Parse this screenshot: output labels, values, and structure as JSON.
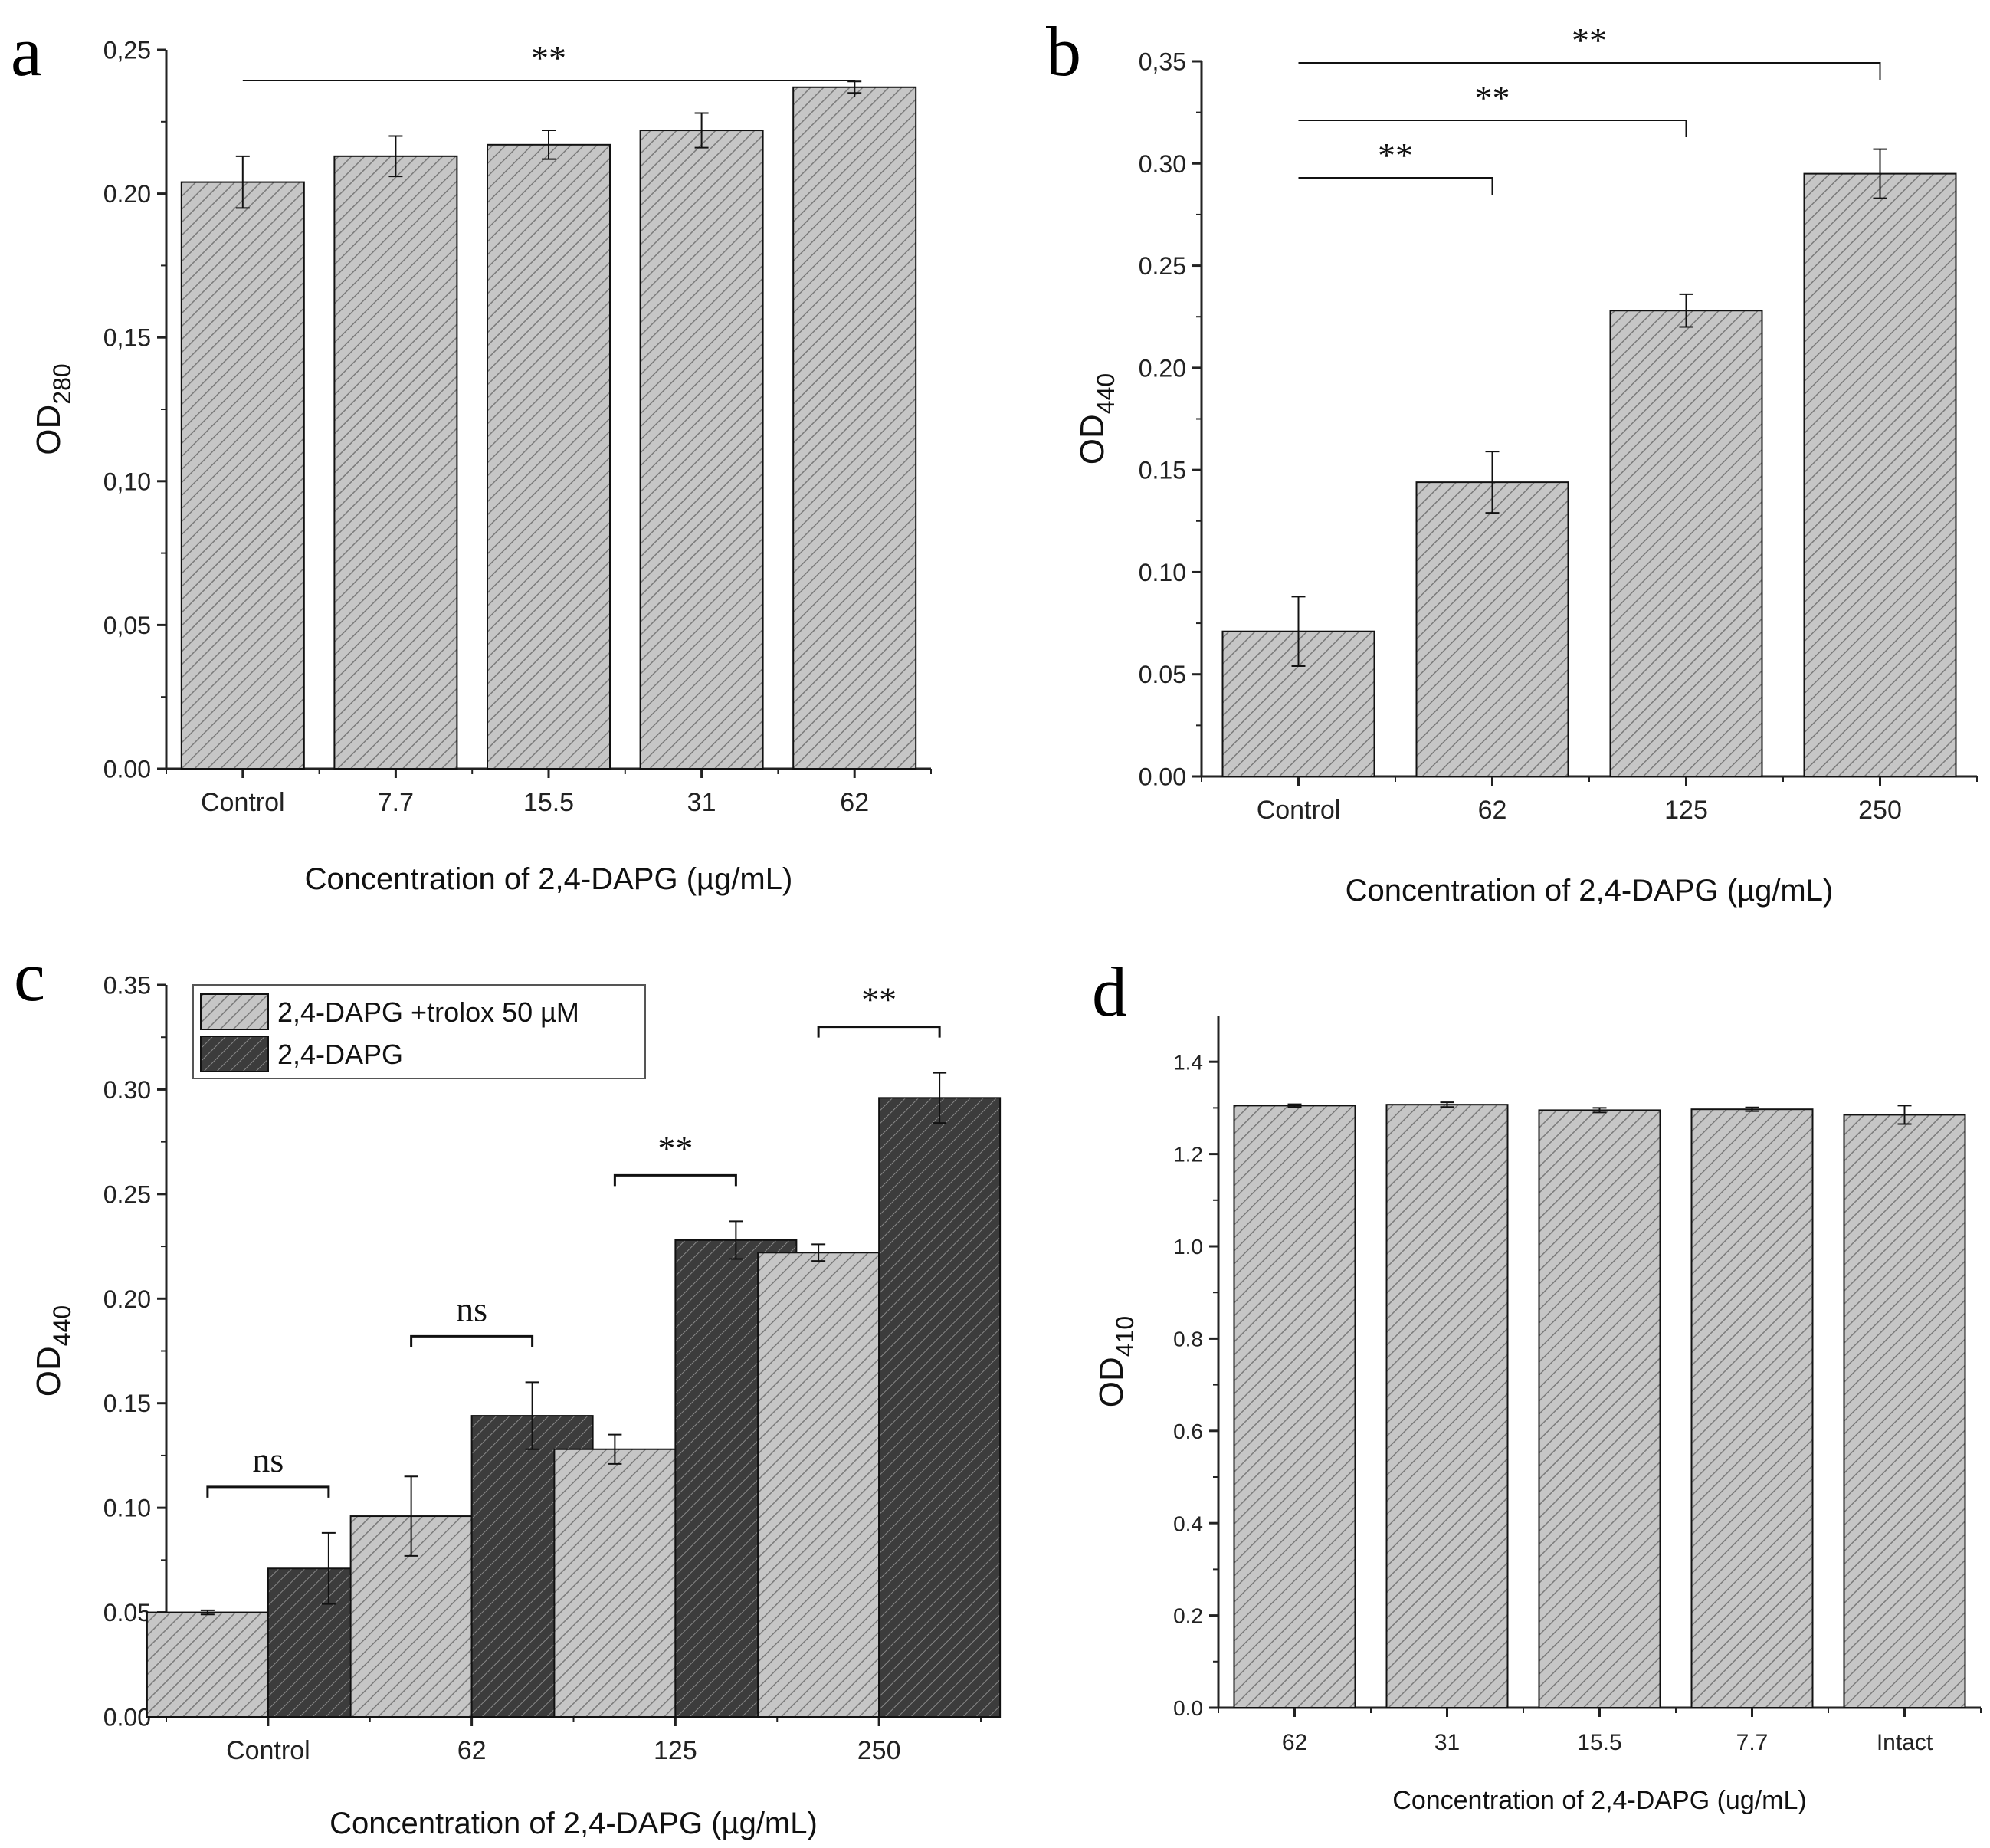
{
  "colors": {
    "light_fill": "#c4c4c4",
    "dark_fill": "#3f3f3f",
    "axis": "#222222"
  },
  "chart_data": [
    {
      "panel": "a",
      "type": "bar",
      "categories": [
        "Control",
        "7.7",
        "15.5",
        "31",
        "62"
      ],
      "values": [
        0.204,
        0.213,
        0.217,
        0.222,
        0.237
      ],
      "errors": [
        0.009,
        0.007,
        0.005,
        0.006,
        0.002
      ],
      "xlabel": "Concentration of 2,4-DAPG (µg/mL)",
      "ylabel_main": "OD",
      "ylabel_sub": "280",
      "ylim": [
        0,
        0.25
      ],
      "yticks": [
        "0.00",
        "0,05",
        "0,10",
        "0,15",
        "0.20",
        "0,25"
      ],
      "significance": [
        {
          "from": 0,
          "to": 4,
          "label": "**"
        }
      ]
    },
    {
      "panel": "b",
      "type": "bar",
      "categories": [
        "Control",
        "62",
        "125",
        "250"
      ],
      "values": [
        0.071,
        0.144,
        0.228,
        0.295
      ],
      "errors": [
        0.017,
        0.015,
        0.008,
        0.012
      ],
      "xlabel": "Concentration of 2,4-DAPG (µg/mL)",
      "ylabel_main": "OD",
      "ylabel_sub": "440",
      "ylim": [
        0,
        0.35
      ],
      "yticks": [
        "0.00",
        "0.05",
        "0.10",
        "0.15",
        "0.20",
        "0.25",
        "0.30",
        "0,35"
      ],
      "significance": [
        {
          "from": 0,
          "to": 1,
          "label": "**"
        },
        {
          "from": 0,
          "to": 2,
          "label": "**"
        },
        {
          "from": 0,
          "to": 3,
          "label": "**"
        }
      ]
    },
    {
      "panel": "c",
      "type": "bar",
      "categories": [
        "Control",
        "62",
        "125",
        "250"
      ],
      "series": [
        {
          "name": "2,4-DAPG +trolox 50 µM",
          "values": [
            0.05,
            0.096,
            0.128,
            0.222
          ],
          "errors": [
            0.001,
            0.019,
            0.007,
            0.004
          ]
        },
        {
          "name": "2,4-DAPG",
          "values": [
            0.071,
            0.144,
            0.228,
            0.296
          ],
          "errors": [
            0.017,
            0.016,
            0.009,
            0.012
          ]
        }
      ],
      "xlabel": "Concentration of 2,4-DAPG (µg/mL)",
      "ylabel_main": "OD",
      "ylabel_sub": "440",
      "ylim": [
        0,
        0.35
      ],
      "yticks": [
        "0.00",
        "0.05",
        "0.10",
        "0.15",
        "0.20",
        "0.25",
        "0.30",
        "0.35"
      ],
      "legend": "top-left",
      "significance": [
        {
          "group": 0,
          "label": "ns"
        },
        {
          "group": 1,
          "label": "ns"
        },
        {
          "group": 2,
          "label": "**"
        },
        {
          "group": 3,
          "label": "**"
        }
      ]
    },
    {
      "panel": "d",
      "type": "bar",
      "categories": [
        "62",
        "31",
        "15.5",
        "7.7",
        "Intact"
      ],
      "values": [
        1.305,
        1.307,
        1.295,
        1.297,
        1.285
      ],
      "errors": [
        0.003,
        0.005,
        0.005,
        0.004,
        0.02
      ],
      "xlabel": "Concentration of 2,4-DAPG (ug/mL)",
      "ylabel_main": "OD",
      "ylabel_sub": "410",
      "ylim": [
        0,
        1.5
      ],
      "yticks": [
        "0.0",
        "0.2",
        "0.4",
        "0.6",
        "0.8",
        "1.0",
        "1.2",
        "1.4"
      ],
      "significance": []
    }
  ]
}
